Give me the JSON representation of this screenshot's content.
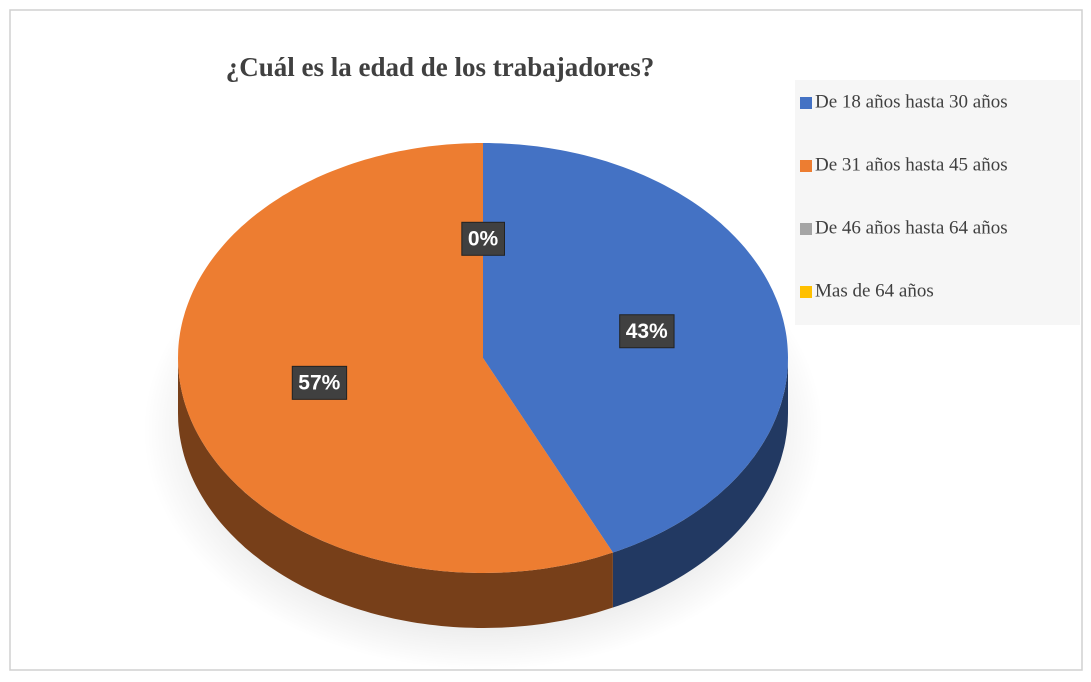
{
  "chart_data": {
    "type": "pie",
    "title": "¿Cuál es la edad de los trabajadores?",
    "categories": [
      "De 18 años hasta 30 años",
      "De 31 años hasta 45 años",
      "De 46 años hasta 64 años",
      "Mas de 64 años"
    ],
    "values": [
      43,
      57,
      0,
      0
    ],
    "value_labels": [
      "43%",
      "57%",
      "0%",
      null
    ],
    "colors": [
      "#4472c4",
      "#ed7d31",
      "#a5a5a5",
      "#ffc000"
    ],
    "legend": "right"
  }
}
